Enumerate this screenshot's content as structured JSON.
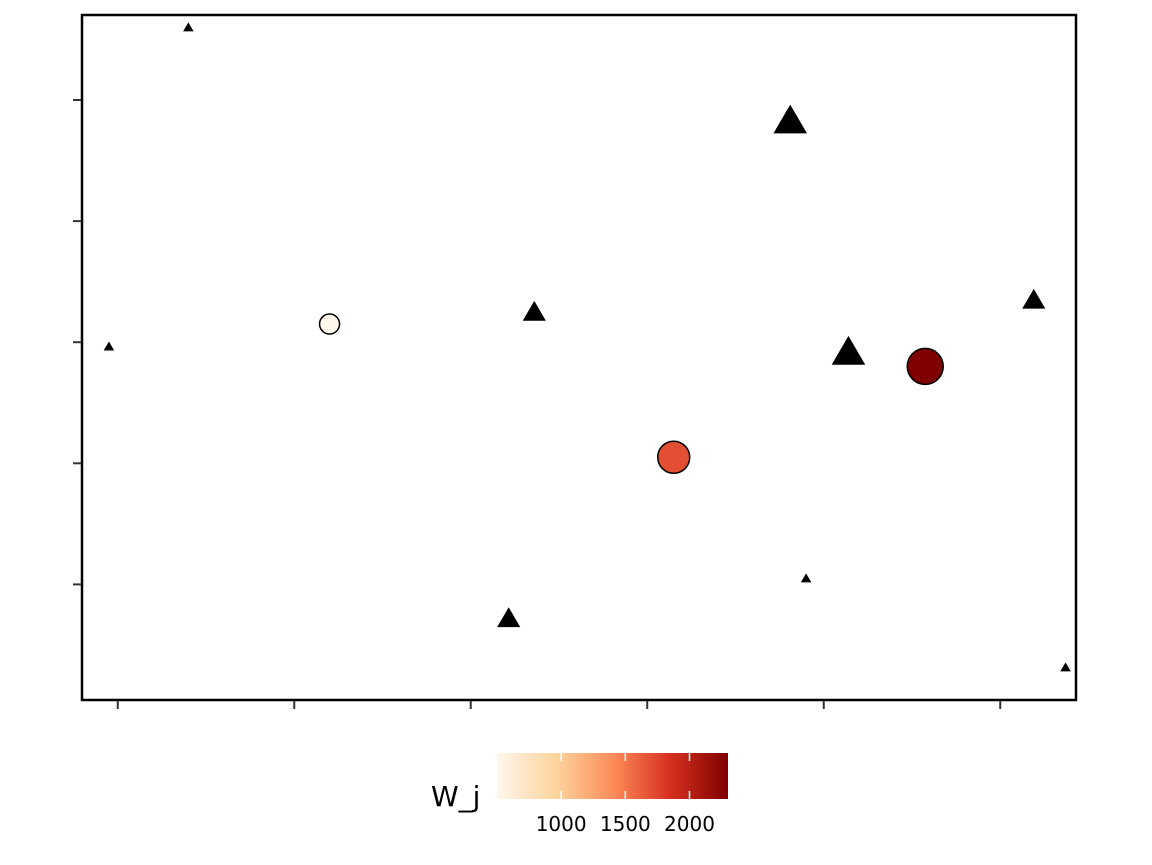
{
  "chart_data": {
    "type": "scatter",
    "xlim": [
      0,
      1
    ],
    "ylim": [
      0,
      1
    ],
    "x_ticks": [
      0.1,
      0.3,
      0.5,
      0.7,
      0.9,
      1.1
    ],
    "y_ticks": [
      0.2,
      0.4,
      0.6,
      0.8,
      1.0
    ],
    "x_tick_labels_visible": false,
    "y_tick_labels_visible": false,
    "grid": false,
    "triangles": [
      {
        "x": 0.18,
        "y": 1.12,
        "size": 1
      },
      {
        "x": 0.09,
        "y": 0.593,
        "size": 1
      },
      {
        "x": 0.572,
        "y": 0.65,
        "size": 2
      },
      {
        "x": 0.543,
        "y": 0.144,
        "size": 2
      },
      {
        "x": 0.862,
        "y": 0.966,
        "size": 3
      },
      {
        "x": 0.928,
        "y": 0.584,
        "size": 3
      },
      {
        "x": 1.138,
        "y": 0.67,
        "size": 2
      },
      {
        "x": 0.88,
        "y": 0.21,
        "size": 1
      },
      {
        "x": 1.174,
        "y": 0.063,
        "size": 1
      }
    ],
    "circles": [
      {
        "x": 0.34,
        "y": 0.63,
        "w_j": 500,
        "size": 1
      },
      {
        "x": 0.73,
        "y": 0.41,
        "w_j": 1700,
        "size": 2
      },
      {
        "x": 1.015,
        "y": 0.56,
        "w_j": 2300,
        "size": 3
      }
    ],
    "legend": {
      "title": "W_j",
      "ticks": [
        1000,
        1500,
        2000
      ],
      "min": 500,
      "max": 2300,
      "colors": [
        "#fff7ec",
        "#fdd49e",
        "#fc8d59",
        "#d7301f",
        "#7f0000"
      ],
      "placement": "bottom"
    }
  }
}
